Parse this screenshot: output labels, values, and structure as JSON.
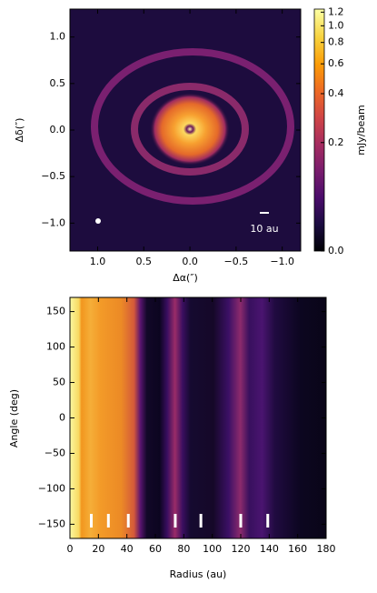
{
  "chart_data": [
    {
      "type": "image",
      "xlabel": "Δα(″)",
      "ylabel": "Δδ(″)",
      "xlim": [
        1.3,
        -1.2
      ],
      "ylim": [
        -1.3,
        1.3
      ],
      "xticks": [
        {
          "value": 1,
          "label": "1.0"
        },
        0.5,
        {
          "value": 0,
          "label": "0.0"
        },
        {
          "value": -0.5,
          "label": "−0.5"
        },
        {
          "value": -1,
          "label": "−1.0"
        }
      ],
      "yticks": [
        {
          "value": -1,
          "label": "−1.0"
        },
        {
          "value": -0.5,
          "label": "−0.5"
        },
        {
          "value": 0,
          "label": "0.0"
        },
        0.5,
        {
          "value": 1,
          "label": "1.0"
        }
      ],
      "annotation": "10 au",
      "colorbar": {
        "label": "mJy/beam",
        "lim": [
          0,
          1.25
        ],
        "scale": "asinh",
        "ticks": [
          {
            "value": 0,
            "label": "0.0"
          },
          0.2,
          0.4,
          0.6,
          0.8,
          {
            "value": 1,
            "label": "1.0"
          },
          1.2
        ]
      }
    },
    {
      "type": "image",
      "xlabel": "Radius (au)",
      "ylabel": "Angle (deg)",
      "xlim": [
        0,
        180
      ],
      "ylim": [
        -170,
        170
      ],
      "xticks": [
        0,
        20,
        40,
        60,
        80,
        100,
        120,
        140,
        160,
        180
      ],
      "yticks": [
        {
          "value": -150,
          "label": "−150"
        },
        {
          "value": -100,
          "label": "−100"
        },
        {
          "value": -50,
          "label": "−50"
        },
        0,
        50,
        100,
        150
      ],
      "markers": [
        15,
        27,
        41,
        74,
        92,
        120,
        139
      ]
    }
  ]
}
